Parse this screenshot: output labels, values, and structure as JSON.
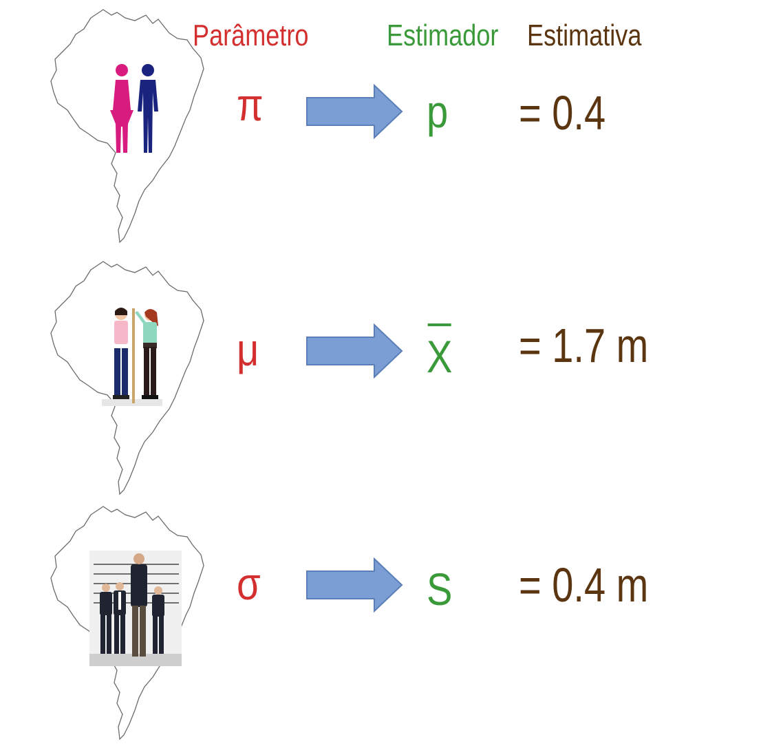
{
  "headers": {
    "parametro": "Parâmetro",
    "estimador": "Estimador",
    "estimativa": "Estimativa"
  },
  "rows": [
    {
      "parameter": "π",
      "estimator": "p",
      "estimator_has_bar": false,
      "estimate": "= 0.4",
      "illustration": "man-woman-figures"
    },
    {
      "parameter": "μ",
      "estimator": "X",
      "estimator_has_bar": true,
      "estimate": "= 1.7 m",
      "illustration": "height-measurement-people"
    },
    {
      "parameter": "σ",
      "estimator": "S",
      "estimator_has_bar": false,
      "estimate": "= 0.4 m",
      "illustration": "height-lineup-photo"
    }
  ],
  "colors": {
    "parameter": "#d32f2f",
    "estimator": "#3a9a3a",
    "estimate": "#5a3510",
    "arrow_fill": "#7b9fd4",
    "arrow_stroke": "#5a7fb8",
    "woman": "#d81b7f",
    "man": "#1a237e"
  }
}
